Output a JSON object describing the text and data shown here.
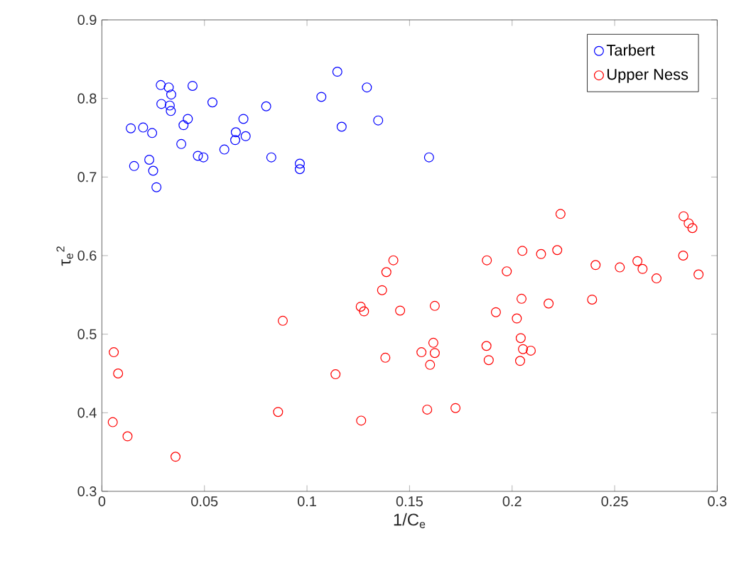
{
  "chart_data": {
    "type": "scatter",
    "xlabel": "1/C$_{e}$",
    "ylabel": "τ$_{e}$$^{2}$",
    "xlim": [
      0,
      0.3
    ],
    "ylim": [
      0.3,
      0.9
    ],
    "xticks": [
      0,
      0.05,
      0.1,
      0.15,
      0.2,
      0.25,
      0.3
    ],
    "yticks": [
      0.3,
      0.4,
      0.5,
      0.6,
      0.7,
      0.8,
      0.9
    ],
    "marker": "circle",
    "legend": "top right",
    "series": [
      {
        "name": "Tarbert",
        "color": "#0000ff",
        "x": [
          0.0141,
          0.0201,
          0.0245,
          0.0157,
          0.0231,
          0.025,
          0.0266,
          0.0287,
          0.0326,
          0.0338,
          0.029,
          0.0331,
          0.0336,
          0.0442,
          0.0419,
          0.0398,
          0.0387,
          0.0468,
          0.0495,
          0.0539,
          0.0597,
          0.0653,
          0.065,
          0.069,
          0.0701,
          0.0801,
          0.0826,
          0.0965,
          0.0965,
          0.107,
          0.1148,
          0.1169,
          0.1292,
          0.1347,
          0.1595
        ],
        "values": [
          0.762,
          0.763,
          0.756,
          0.714,
          0.722,
          0.708,
          0.687,
          0.817,
          0.814,
          0.805,
          0.793,
          0.791,
          0.784,
          0.816,
          0.774,
          0.766,
          0.742,
          0.727,
          0.725,
          0.795,
          0.735,
          0.757,
          0.747,
          0.774,
          0.752,
          0.79,
          0.725,
          0.717,
          0.71,
          0.802,
          0.834,
          0.764,
          0.814,
          0.772,
          0.725
        ]
      },
      {
        "name": "Upper Ness",
        "color": "#ff0000",
        "x": [
          0.0058,
          0.0079,
          0.0053,
          0.0125,
          0.0359,
          0.0859,
          0.0882,
          0.1139,
          0.1264,
          0.1262,
          0.1278,
          0.1366,
          0.1382,
          0.1454,
          0.1558,
          0.1616,
          0.1623,
          0.16,
          0.1586,
          0.1623,
          0.1421,
          0.1387,
          0.1724,
          0.1877,
          0.1974,
          0.205,
          0.2141,
          0.222,
          0.2236,
          0.2046,
          0.1921,
          0.2178,
          0.2023,
          0.1875,
          0.1886,
          0.2042,
          0.2053,
          0.2091,
          0.2039,
          0.239,
          0.2407,
          0.2525,
          0.2611,
          0.2636,
          0.2704,
          0.2834,
          0.2836,
          0.2861,
          0.2879,
          0.2909
        ],
        "values": [
          0.477,
          0.45,
          0.388,
          0.37,
          0.344,
          0.401,
          0.517,
          0.449,
          0.39,
          0.535,
          0.529,
          0.556,
          0.47,
          0.53,
          0.477,
          0.489,
          0.476,
          0.461,
          0.404,
          0.536,
          0.594,
          0.579,
          0.406,
          0.594,
          0.58,
          0.606,
          0.602,
          0.607,
          0.653,
          0.545,
          0.528,
          0.539,
          0.52,
          0.485,
          0.467,
          0.495,
          0.481,
          0.479,
          0.466,
          0.544,
          0.588,
          0.585,
          0.593,
          0.583,
          0.571,
          0.6,
          0.65,
          0.641,
          0.635,
          0.576
        ]
      }
    ]
  }
}
